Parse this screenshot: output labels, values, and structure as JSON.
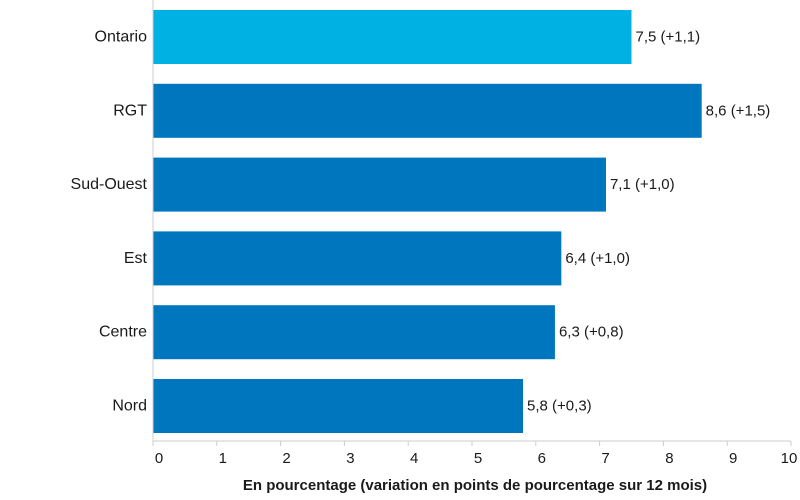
{
  "chart_data": {
    "type": "bar",
    "orientation": "horizontal",
    "title": "",
    "xlabel": "En pourcentage (variation en points de pourcentage sur 12 mois)",
    "ylabel": "",
    "xlim": [
      0,
      10
    ],
    "x_ticks": [
      "0",
      "1",
      "2",
      "3",
      "4",
      "5",
      "6",
      "7",
      "8",
      "9",
      "10"
    ],
    "categories": [
      "Ontario",
      "RGT",
      "Sud-Ouest",
      "Est",
      "Centre",
      "Nord"
    ],
    "values": [
      7.5,
      8.6,
      7.1,
      6.4,
      6.3,
      5.8
    ],
    "value_labels": [
      "7,5 (+1,1)",
      "8,6 (+1,5)",
      "7,1 (+1,0)",
      "6,4 (+1,0)",
      "6,3 (+0,8)",
      "5,8 (+0,3)"
    ],
    "change": [
      1.1,
      1.5,
      1.0,
      1.0,
      0.8,
      0.3
    ],
    "bar_colors": [
      "#00b2e3",
      "#0076bf",
      "#0076bf",
      "#0076bf",
      "#0076bf",
      "#0076bf"
    ],
    "axis_color": "#cccccc",
    "grid": false,
    "legend": "none"
  }
}
